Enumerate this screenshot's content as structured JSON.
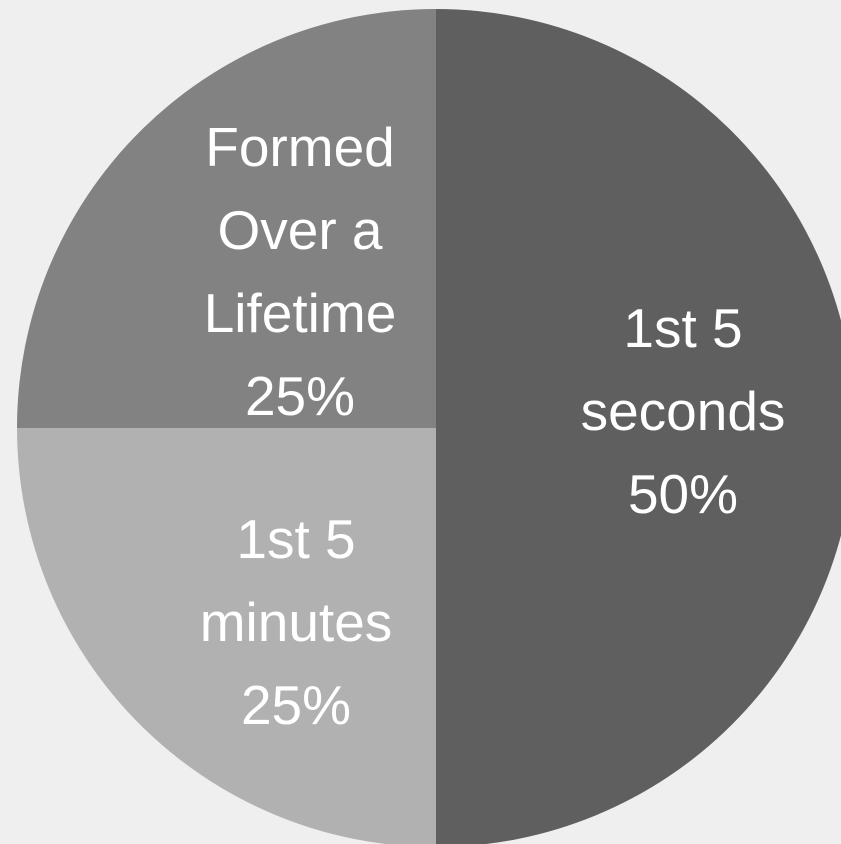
{
  "colors": {
    "background": "#efefef",
    "label_text": "#ffffff"
  },
  "chart_data": {
    "type": "pie",
    "slices": [
      {
        "label_lines": [
          "1st 5",
          "seconds",
          "50%"
        ],
        "value": 50,
        "color": "#5f5f5f"
      },
      {
        "label_lines": [
          "1st 5",
          "minutes",
          "25%"
        ],
        "value": 25,
        "color": "#b1b1b1"
      },
      {
        "label_lines": [
          "Formed",
          "Over a",
          "Lifetime",
          "25%"
        ],
        "value": 25,
        "color": "#828282"
      }
    ],
    "start_angle": "12 o'clock",
    "direction": "clockwise",
    "legend": "none"
  }
}
